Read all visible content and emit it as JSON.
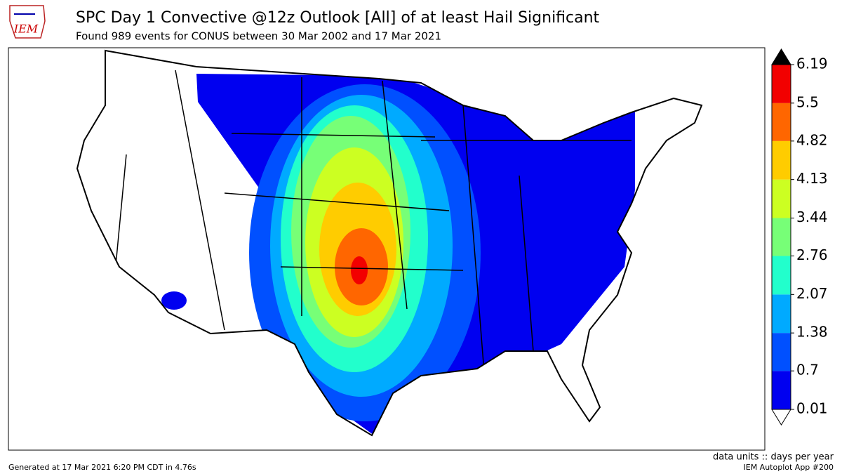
{
  "header": {
    "title": "SPC Day 1 Convective @12z Outlook [All] of at least Hail Significant",
    "subtitle": "Found 989 events for CONUS between 30 Mar 2002 and 17 Mar 2021",
    "logo": "IEM"
  },
  "colorbar": {
    "levels": [
      0.01,
      0.7,
      1.38,
      2.07,
      2.76,
      3.44,
      4.13,
      4.82,
      5.5,
      6.19
    ],
    "labels": [
      {
        "value": 0.01,
        "label": "0.01"
      },
      {
        "value": 0.7,
        "label": "0.7"
      },
      {
        "value": 1.38,
        "label": "1.38"
      },
      {
        "value": 2.07,
        "label": "2.07"
      },
      {
        "value": 2.76,
        "label": "2.76"
      },
      {
        "value": 3.44,
        "label": "3.44"
      },
      {
        "value": 4.13,
        "label": "4.13"
      },
      {
        "value": 4.82,
        "label": "4.82"
      },
      {
        "value": 5.5,
        "label": "5.5"
      },
      {
        "value": 6.19,
        "label": "6.19"
      }
    ],
    "colors": [
      "#0000f0",
      "#0050ff",
      "#00aaff",
      "#22ffcc",
      "#77ff77",
      "#ccff22",
      "#ffcc00",
      "#ff6600",
      "#f20000"
    ],
    "over_color": "#000000",
    "under_color": "#ffffff"
  },
  "footer": {
    "generated": "Generated at 17 Mar 2021 6:20 PM CDT in 4.76s",
    "units": "data units :: days per year",
    "app": "IEM Autoplot App #200"
  }
}
